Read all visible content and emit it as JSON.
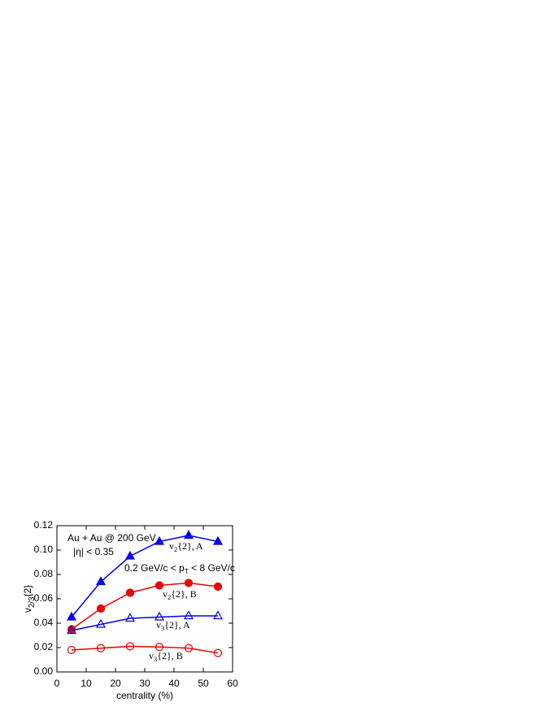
{
  "chart_data": {
    "type": "line",
    "xlabel": "centrality (%)",
    "ylabel": {
      "main": "v",
      "sub": "2/3",
      "tail": "{2}"
    },
    "annotations": [
      {
        "main": "Au + Au @ 200 GeV"
      },
      {
        "main": "|η| < 0.35"
      },
      {
        "main": "0.2 GeV/c < p",
        "sub": "T",
        "tail": " < 8 GeV/c"
      }
    ],
    "x": [
      5,
      15,
      25,
      35,
      45,
      55
    ],
    "series": [
      {
        "name": {
          "main": "v",
          "sub": "2",
          "tail": "{2}, A"
        },
        "color": "#0000ee",
        "marker": "triangle",
        "filled": true,
        "values": [
          0.045,
          0.074,
          0.095,
          0.107,
          0.112,
          0.107
        ]
      },
      {
        "name": {
          "main": "v",
          "sub": "2",
          "tail": "{2}, B"
        },
        "color": "#ee0000",
        "marker": "circle",
        "filled": true,
        "values": [
          0.035,
          0.052,
          0.065,
          0.071,
          0.073,
          0.07
        ]
      },
      {
        "name": {
          "main": "v",
          "sub": "3",
          "tail": "{2}, A"
        },
        "color": "#0000ee",
        "marker": "triangle",
        "filled": false,
        "values": [
          0.034,
          0.039,
          0.044,
          0.045,
          0.046,
          0.046
        ]
      },
      {
        "name": {
          "main": "v",
          "sub": "3",
          "tail": "{2}, B"
        },
        "color": "#ee0000",
        "marker": "circle",
        "filled": false,
        "values": [
          0.018,
          0.0195,
          0.021,
          0.0205,
          0.0195,
          0.0155
        ]
      }
    ],
    "xlim": [
      0,
      60
    ],
    "xticks": [
      0,
      10,
      20,
      30,
      40,
      50,
      60
    ],
    "ylim": [
      0,
      0.12
    ],
    "yticks": [
      {
        "value": 0,
        "label": "0.00"
      },
      {
        "value": 0.02,
        "label": "0.02"
      },
      {
        "value": 0.04,
        "label": "0.04"
      },
      {
        "value": 0.06,
        "label": "0.06"
      },
      {
        "value": 0.08,
        "label": "0.08"
      },
      {
        "value": 0.1,
        "label": "0.10"
      },
      {
        "value": 0.12,
        "label": "0.12"
      }
    ]
  }
}
